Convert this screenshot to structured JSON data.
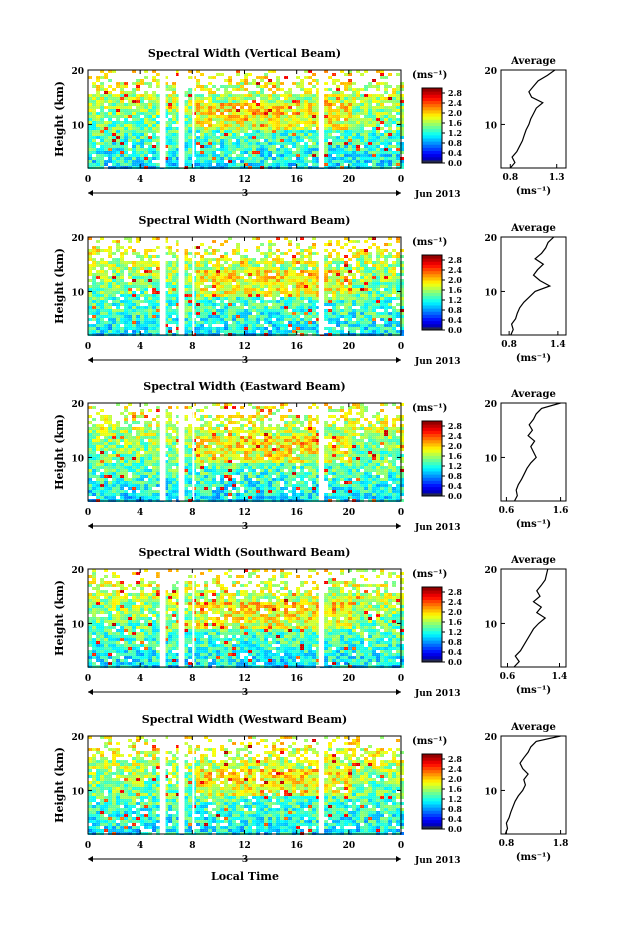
{
  "figure": {
    "x_axis_title": "Local Time",
    "month_label": "Jun 2013",
    "day_label": "3"
  },
  "chart_data": [
    {
      "type": "heatmap",
      "title": "Spectral Width (Vertical Beam)",
      "xlabel": "Local Time",
      "ylabel": "Height (km)",
      "x_ticks": [
        "0",
        "4",
        "8",
        "12",
        "16",
        "20",
        "0"
      ],
      "y_ticks": [
        "10",
        "20"
      ],
      "xlim": [
        0,
        24
      ],
      "ylim": [
        2,
        20
      ],
      "colorbar": {
        "label": "(ms⁻¹)",
        "ticks": [
          "0.0",
          "0.4",
          "0.8",
          "1.2",
          "1.6",
          "2.0",
          "2.4",
          "2.8"
        ],
        "range": [
          0.0,
          3.0
        ]
      },
      "profile": {
        "title": "Average",
        "xlabel": "(ms⁻¹)",
        "x_ticks": [
          "0.8",
          "1.3"
        ],
        "y_ticks": [
          "10",
          "20"
        ],
        "xlim": [
          0.7,
          1.4
        ],
        "height_km": [
          2,
          3,
          4,
          5,
          6,
          7,
          8,
          9,
          10,
          11,
          12,
          13,
          14,
          15,
          16,
          17,
          18,
          19,
          20
        ],
        "width_ms": [
          0.8,
          0.85,
          0.82,
          0.87,
          0.9,
          0.93,
          0.95,
          0.97,
          1.0,
          1.02,
          1.05,
          1.08,
          1.15,
          1.03,
          1.0,
          1.05,
          1.1,
          1.2,
          1.28
        ]
      }
    },
    {
      "type": "heatmap",
      "title": "Spectral Width (Northward Beam)",
      "xlabel": "Local Time",
      "ylabel": "Height (km)",
      "x_ticks": [
        "0",
        "4",
        "8",
        "12",
        "16",
        "20",
        "0"
      ],
      "y_ticks": [
        "10",
        "20"
      ],
      "xlim": [
        0,
        24
      ],
      "ylim": [
        2,
        20
      ],
      "colorbar": {
        "label": "(ms⁻¹)",
        "ticks": [
          "0.0",
          "0.4",
          "0.8",
          "1.2",
          "1.6",
          "2.0",
          "2.4",
          "2.8"
        ],
        "range": [
          0.0,
          3.0
        ]
      },
      "profile": {
        "title": "Average",
        "xlabel": "(ms⁻¹)",
        "x_ticks": [
          "0.8",
          "1.4"
        ],
        "y_ticks": [
          "10",
          "20"
        ],
        "xlim": [
          0.7,
          1.5
        ],
        "height_km": [
          2,
          3,
          4,
          5,
          6,
          7,
          8,
          9,
          10,
          11,
          12,
          13,
          14,
          15,
          16,
          17,
          18,
          19,
          20
        ],
        "width_ms": [
          0.82,
          0.85,
          0.83,
          0.88,
          0.9,
          0.93,
          0.98,
          1.05,
          1.12,
          1.3,
          1.18,
          1.1,
          1.15,
          1.22,
          1.12,
          1.2,
          1.25,
          1.28,
          1.35
        ]
      }
    },
    {
      "type": "heatmap",
      "title": "Spectral Width (Eastward Beam)",
      "xlabel": "Local Time",
      "ylabel": "Height (km)",
      "x_ticks": [
        "0",
        "4",
        "8",
        "12",
        "16",
        "20",
        "0"
      ],
      "y_ticks": [
        "10",
        "20"
      ],
      "xlim": [
        0,
        24
      ],
      "ylim": [
        2,
        20
      ],
      "colorbar": {
        "label": "(ms⁻¹)",
        "ticks": [
          "0.0",
          "0.4",
          "0.8",
          "1.2",
          "1.6",
          "2.0",
          "2.4",
          "2.8"
        ],
        "range": [
          0.0,
          3.0
        ]
      },
      "profile": {
        "title": "Average",
        "xlabel": "(ms⁻¹)",
        "x_ticks": [
          "0.6",
          "1.6"
        ],
        "y_ticks": [
          "10",
          "20"
        ],
        "xlim": [
          0.5,
          1.7
        ],
        "height_km": [
          2,
          3,
          4,
          5,
          6,
          7,
          8,
          9,
          10,
          11,
          12,
          13,
          14,
          15,
          16,
          17,
          18,
          19,
          20
        ],
        "width_ms": [
          0.75,
          0.8,
          0.78,
          0.82,
          0.88,
          0.93,
          0.98,
          1.05,
          1.15,
          1.1,
          1.05,
          1.12,
          1.0,
          1.08,
          1.02,
          1.1,
          1.15,
          1.25,
          1.6
        ]
      }
    },
    {
      "type": "heatmap",
      "title": "Spectral Width (Southward Beam)",
      "xlabel": "Local Time",
      "ylabel": "Height (km)",
      "x_ticks": [
        "0",
        "4",
        "8",
        "12",
        "16",
        "20",
        "0"
      ],
      "y_ticks": [
        "10",
        "20"
      ],
      "xlim": [
        0,
        24
      ],
      "ylim": [
        2,
        20
      ],
      "colorbar": {
        "label": "(ms⁻¹)",
        "ticks": [
          "0.0",
          "0.4",
          "0.8",
          "1.2",
          "1.6",
          "2.0",
          "2.4",
          "2.8"
        ],
        "range": [
          0.0,
          3.0
        ]
      },
      "profile": {
        "title": "Average",
        "xlabel": "(ms⁻¹)",
        "x_ticks": [
          "0.6",
          "1.4"
        ],
        "y_ticks": [
          "10",
          "20"
        ],
        "xlim": [
          0.5,
          1.5
        ],
        "height_km": [
          2,
          3,
          4,
          5,
          6,
          7,
          8,
          9,
          10,
          11,
          12,
          13,
          14,
          15,
          16,
          17,
          18,
          19,
          20
        ],
        "width_ms": [
          0.7,
          0.78,
          0.72,
          0.8,
          0.85,
          0.9,
          0.95,
          1.0,
          1.08,
          1.18,
          1.05,
          1.12,
          1.0,
          1.1,
          1.05,
          1.12,
          1.18,
          1.2,
          1.22
        ]
      }
    },
    {
      "type": "heatmap",
      "title": "Spectral Width (Westward Beam)",
      "xlabel": "Local Time",
      "ylabel": "Height (km)",
      "x_ticks": [
        "0",
        "4",
        "8",
        "12",
        "16",
        "20",
        "0"
      ],
      "y_ticks": [
        "10",
        "20"
      ],
      "xlim": [
        0,
        24
      ],
      "ylim": [
        2,
        20
      ],
      "colorbar": {
        "label": "(ms⁻¹)",
        "ticks": [
          "0.0",
          "0.4",
          "0.8",
          "1.2",
          "1.6",
          "2.0",
          "2.4",
          "2.8"
        ],
        "range": [
          0.0,
          3.0
        ]
      },
      "profile": {
        "title": "Average",
        "xlabel": "(ms⁻¹)",
        "x_ticks": [
          "0.8",
          "1.8"
        ],
        "y_ticks": [
          "10",
          "20"
        ],
        "xlim": [
          0.7,
          1.9
        ],
        "height_km": [
          2,
          3,
          4,
          5,
          6,
          7,
          8,
          9,
          10,
          11,
          12,
          13,
          14,
          15,
          16,
          17,
          18,
          19,
          20
        ],
        "width_ms": [
          0.78,
          0.82,
          0.8,
          0.85,
          0.88,
          0.92,
          0.96,
          1.02,
          1.1,
          1.15,
          1.12,
          1.2,
          1.1,
          1.05,
          1.12,
          1.2,
          1.25,
          1.35,
          1.8
        ]
      }
    }
  ]
}
